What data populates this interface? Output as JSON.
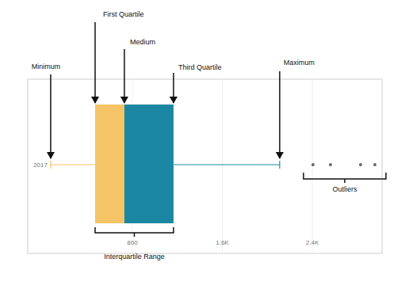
{
  "chart_data": {
    "type": "box",
    "orientation": "horizontal",
    "categories": [
      "2017"
    ],
    "boxes": [
      {
        "min": 74,
        "q1": 469,
        "median": 729,
        "q3": 1166,
        "max": 2110,
        "outliers": [
          2406,
          2561,
          2829,
          2956
        ]
      }
    ],
    "colors": [
      "#f5c466",
      "#1b87a2"
    ],
    "xlim": [
      -130,
      3020
    ],
    "xticks": [
      800,
      {
        "value": 1600,
        "label": "1.6K"
      },
      {
        "value": 2400,
        "label": "2.4K"
      }
    ],
    "grid": true,
    "annotations": {
      "min": "Minimum",
      "q1": "First Quartile",
      "median": "Medium",
      "q3": "Third Quartile",
      "max": "Maximum",
      "outliers": "Outliers",
      "iqr": "Interquartile Range"
    }
  }
}
